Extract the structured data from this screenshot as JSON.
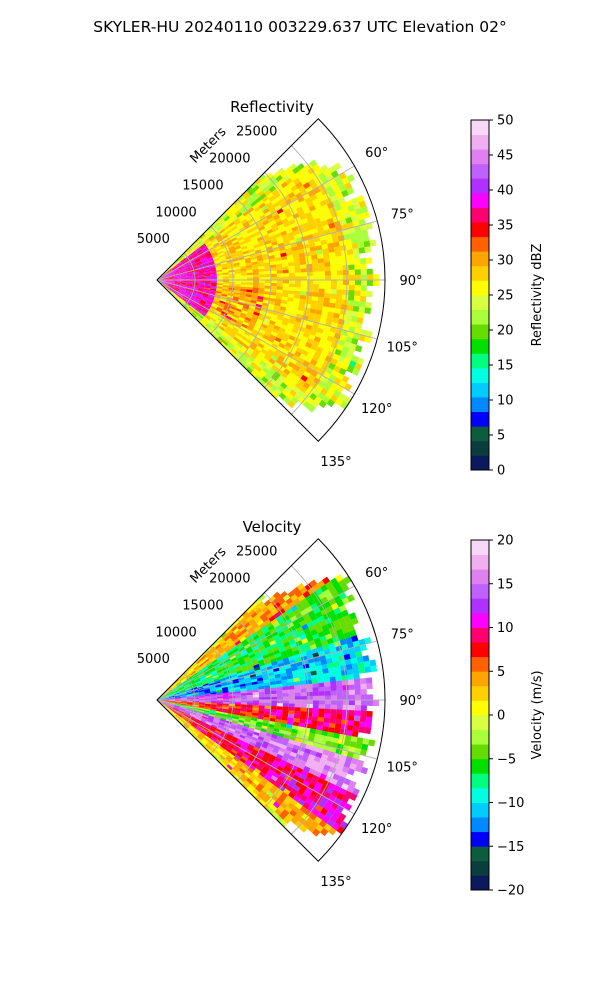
{
  "figure_title": "SKYLER-HU  20240110  003229.637 UTC Elevation 02°",
  "chart_data": [
    {
      "type": "heatmap",
      "subtype": "polar-sector (PPI)",
      "title": "Reflectivity",
      "radial_label": "Meters",
      "radial_ticks": [
        "5000",
        "10000",
        "15000",
        "20000",
        "25000"
      ],
      "radial_tick_values": [
        5000,
        10000,
        15000,
        20000,
        25000
      ],
      "angle_ticks": [
        "60°",
        "75°",
        "90°",
        "105°",
        "120°",
        "135°"
      ],
      "angle_tick_values": [
        60,
        75,
        90,
        105,
        120,
        135
      ],
      "azimuth_range": [
        45,
        135
      ],
      "range_max": 30000,
      "grid": true,
      "colorbar": {
        "label": "Reflectivity dBZ",
        "range": [
          0,
          50
        ],
        "ticks": [
          "0",
          "5",
          "10",
          "15",
          "20",
          "25",
          "30",
          "35",
          "40",
          "45",
          "50"
        ],
        "tick_values": [
          0,
          5,
          10,
          15,
          20,
          25,
          30,
          35,
          40,
          45,
          50
        ],
        "colors": [
          "#0a1a5c",
          "#0a3d3d",
          "#0d5c3d",
          "#0000ff",
          "#0088ff",
          "#00ccff",
          "#00ffe0",
          "#00ff80",
          "#00e000",
          "#66dd00",
          "#a8ff3a",
          "#d8ff40",
          "#ffff00",
          "#ffd000",
          "#ffa500",
          "#ff6000",
          "#ff0000",
          "#ff0070",
          "#ff00ff",
          "#b030ff",
          "#c060ff",
          "#e080f0",
          "#f0b0f0",
          "#f8d8f8"
        ]
      },
      "field_description": {
        "dominant_values": [
          25,
          30
        ],
        "near_range_values": [
          35,
          40
        ],
        "edge_values": [
          20,
          22
        ]
      }
    },
    {
      "type": "heatmap",
      "subtype": "polar-sector (PPI)",
      "title": "Velocity",
      "radial_label": "Meters",
      "radial_ticks": [
        "5000",
        "10000",
        "15000",
        "20000",
        "25000"
      ],
      "radial_tick_values": [
        5000,
        10000,
        15000,
        20000,
        25000
      ],
      "angle_ticks": [
        "60°",
        "75°",
        "90°",
        "105°",
        "120°",
        "135°"
      ],
      "angle_tick_values": [
        60,
        75,
        90,
        105,
        120,
        135
      ],
      "azimuth_range": [
        45,
        135
      ],
      "range_max": 30000,
      "grid": true,
      "colorbar": {
        "label": "Velocity (m/s)",
        "range": [
          -20,
          20
        ],
        "ticks": [
          "−20",
          "−15",
          "−10",
          "−5",
          "0",
          "5",
          "10",
          "15",
          "20"
        ],
        "tick_values": [
          -20,
          -15,
          -10,
          -5,
          0,
          5,
          10,
          15,
          20
        ],
        "colors": [
          "#0a1a5c",
          "#0a3d3d",
          "#0d5c3d",
          "#0000ff",
          "#0088ff",
          "#00ccff",
          "#00ffe0",
          "#00ff80",
          "#00e000",
          "#66dd00",
          "#a8ff3a",
          "#d8ff40",
          "#ffff00",
          "#ffd000",
          "#ffa500",
          "#ff6000",
          "#ff0000",
          "#ff0070",
          "#ff00ff",
          "#b030ff",
          "#c060ff",
          "#e080f0",
          "#f0b0f0",
          "#f8d8f8"
        ]
      },
      "field_description": {
        "bands_by_azimuth": [
          {
            "az": [
              47,
              55
            ],
            "value": 4
          },
          {
            "az": [
              55,
              72
            ],
            "value": -6
          },
          {
            "az": [
              72,
              84
            ],
            "value": -11
          },
          {
            "az": [
              84,
              93
            ],
            "value": 14
          },
          {
            "az": [
              93,
              100
            ],
            "value": 8
          },
          {
            "az": [
              100,
              107
            ],
            "value": -4
          },
          {
            "az": [
              107,
              115
            ],
            "value": 15
          },
          {
            "az": [
              115,
              126
            ],
            "value": 9
          },
          {
            "az": [
              126,
              134
            ],
            "value": 3
          }
        ]
      }
    }
  ]
}
